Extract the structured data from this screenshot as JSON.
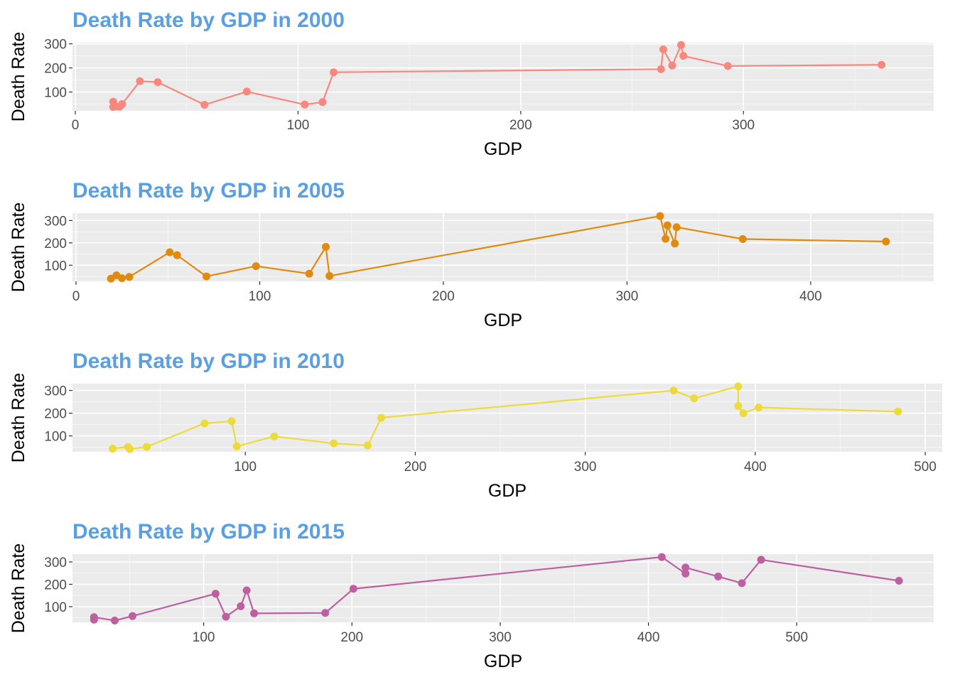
{
  "colors": {
    "title": "#5b9fe3",
    "panel": "#ebebeb",
    "grid": "#ffffff"
  },
  "chart_data": [
    {
      "type": "line",
      "title": "Death Rate by GDP in 2000",
      "xlabel": "GDP",
      "ylabel": "Death Rate",
      "color": "#f8877f",
      "xlim": [
        0,
        380
      ],
      "ylim": [
        22,
        305
      ],
      "xticks": [
        0,
        100,
        200,
        300
      ],
      "yticks": [
        100,
        200,
        300
      ],
      "grid": true,
      "x": [
        17,
        17,
        18,
        20,
        21,
        29,
        37,
        58,
        77,
        103,
        111,
        116,
        263,
        264,
        268,
        272,
        273,
        293,
        362
      ],
      "y": [
        38,
        60,
        40,
        40,
        50,
        145,
        141,
        47,
        102,
        48,
        58,
        182,
        195,
        277,
        210,
        295,
        250,
        208,
        213
      ]
    },
    {
      "type": "line",
      "title": "Death Rate by GDP in 2005",
      "xlabel": "GDP",
      "ylabel": "Death Rate",
      "color": "#e08b0e",
      "xlim": [
        0,
        460
      ],
      "ylim": [
        28,
        333
      ],
      "xticks": [
        0,
        100,
        200,
        300,
        400
      ],
      "yticks": [
        100,
        200,
        300
      ],
      "grid": true,
      "x": [
        19,
        22,
        25,
        29,
        51,
        55,
        71,
        98,
        127,
        136,
        138,
        318,
        321,
        322,
        326,
        327,
        363,
        441
      ],
      "y": [
        40,
        55,
        42,
        48,
        158,
        145,
        50,
        96,
        62,
        182,
        52,
        320,
        218,
        278,
        197,
        270,
        217,
        206
      ]
    },
    {
      "type": "line",
      "title": "Death Rate by GDP in 2010",
      "xlabel": "GDP",
      "ylabel": "Death Rate",
      "color": "#ecdb3a",
      "xlim": [
        0,
        510
      ],
      "ylim": [
        30,
        330
      ],
      "xticks": [
        100,
        200,
        300,
        400,
        500
      ],
      "yticks": [
        100,
        200,
        300
      ],
      "grid": true,
      "x": [
        22,
        31,
        32,
        42,
        76,
        92,
        95,
        117,
        152,
        172,
        180,
        352,
        364,
        390,
        390,
        393,
        402,
        484
      ],
      "y": [
        44,
        52,
        42,
        52,
        155,
        165,
        54,
        98,
        67,
        58,
        180,
        300,
        265,
        318,
        232,
        200,
        225,
        207
      ]
    },
    {
      "type": "line",
      "title": "Death Rate by GDP in 2015",
      "xlabel": "GDP",
      "ylabel": "Death Rate",
      "color": "#bd5fa0",
      "xlim": [
        0,
        590
      ],
      "ylim": [
        30,
        335
      ],
      "xticks": [
        100,
        200,
        300,
        400,
        500
      ],
      "yticks": [
        100,
        200,
        300
      ],
      "grid": true,
      "x": [
        26,
        26,
        40,
        52,
        108,
        115,
        125,
        129,
        134,
        182,
        201,
        409,
        425,
        425,
        447,
        463,
        476,
        569
      ],
      "y": [
        42,
        53,
        38,
        58,
        158,
        55,
        102,
        173,
        70,
        72,
        180,
        322,
        248,
        275,
        235,
        205,
        310,
        216
      ]
    }
  ]
}
